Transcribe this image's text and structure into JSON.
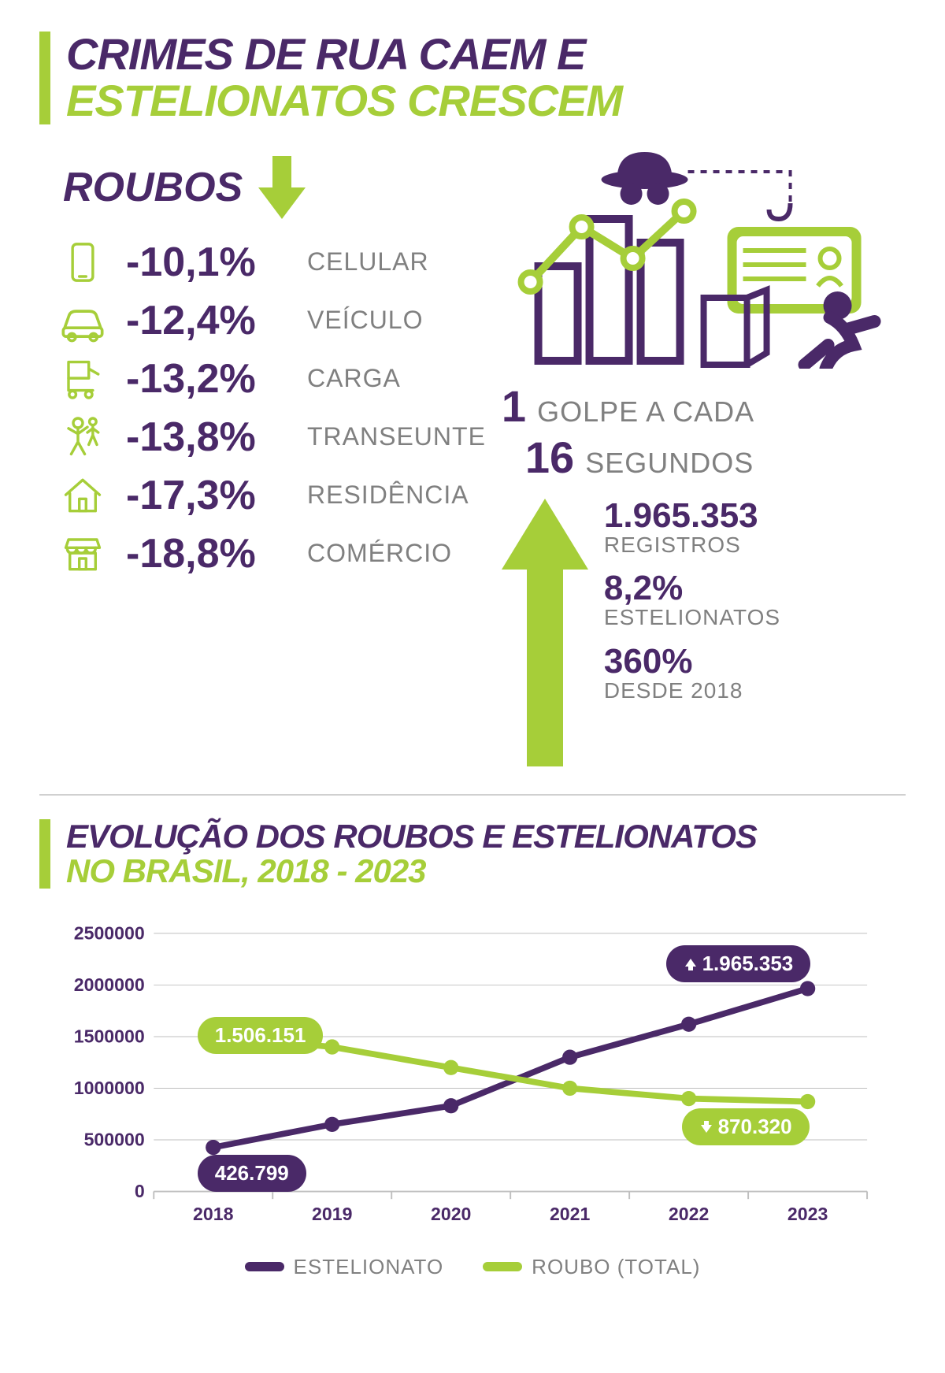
{
  "colors": {
    "purple": "#4a2968",
    "green": "#a6ce39",
    "gray": "#808080",
    "lightgray": "#d0d0d0",
    "white": "#ffffff"
  },
  "header": {
    "line1": "CRIMES DE RUA CAEM E",
    "line2": "ESTELIONATOS CRESCEM"
  },
  "roubos": {
    "title": "ROUBOS",
    "items": [
      {
        "icon": "phone",
        "value": "-10,1%",
        "label": "CELULAR"
      },
      {
        "icon": "car",
        "value": "-12,4%",
        "label": "VEÍCULO"
      },
      {
        "icon": "cart",
        "value": "-13,2%",
        "label": "CARGA"
      },
      {
        "icon": "person",
        "value": "-13,8%",
        "label": "TRANSEUNTE"
      },
      {
        "icon": "house",
        "value": "-17,3%",
        "label": "RESIDÊNCIA"
      },
      {
        "icon": "store",
        "value": "-18,8%",
        "label": "COMÉRCIO"
      }
    ]
  },
  "golpe": {
    "n1": "1",
    "t1": "GOLPE A CADA",
    "n2": "16",
    "t2": "SEGUNDOS"
  },
  "right_stats": [
    {
      "big": "1.965.353",
      "sub": "REGISTROS"
    },
    {
      "big": "8,2%",
      "sub": "ESTELIONATOS"
    },
    {
      "big": "360%",
      "sub": "DESDE 2018"
    }
  ],
  "chart": {
    "title_line1": "EVOLUÇÃO DOS ROUBOS E ESTELIONATOS",
    "title_line2": "NO BRASIL, 2018 - 2023",
    "type": "line",
    "x_labels": [
      "2018",
      "2019",
      "2020",
      "2021",
      "2022",
      "2023"
    ],
    "ylim": [
      0,
      2500000
    ],
    "ytick_step": 500000,
    "ytick_labels": [
      "0",
      "500000",
      "1000000",
      "1500000",
      "2000000",
      "2500000"
    ],
    "series": [
      {
        "name": "ESTELIONATO",
        "color": "#4a2968",
        "values": [
          426799,
          650000,
          830000,
          1300000,
          1620000,
          1965353
        ]
      },
      {
        "name": "ROUBO (TOTAL)",
        "color": "#a6ce39",
        "values": [
          1506151,
          1400000,
          1200000,
          1000000,
          900000,
          870320
        ]
      }
    ],
    "grid_color": "#bfbfbf",
    "axis_color": "#bfbfbf",
    "tick_fontsize": 24,
    "line_width": 8,
    "marker_radius": 10,
    "callouts": [
      {
        "series": 1,
        "point": 0,
        "text": "1.506.151",
        "bg": "#a6ce39",
        "arrow": "none"
      },
      {
        "series": 0,
        "point": 0,
        "text": "426.799",
        "bg": "#4a2968",
        "arrow": "none"
      },
      {
        "series": 0,
        "point": 5,
        "text": "1.965.353",
        "bg": "#4a2968",
        "arrow": "up"
      },
      {
        "series": 1,
        "point": 5,
        "text": "870.320",
        "bg": "#a6ce39",
        "arrow": "down"
      }
    ],
    "legend": [
      {
        "label": "ESTELIONATO",
        "color": "#4a2968"
      },
      {
        "label": "ROUBO (TOTAL)",
        "color": "#a6ce39"
      }
    ]
  }
}
